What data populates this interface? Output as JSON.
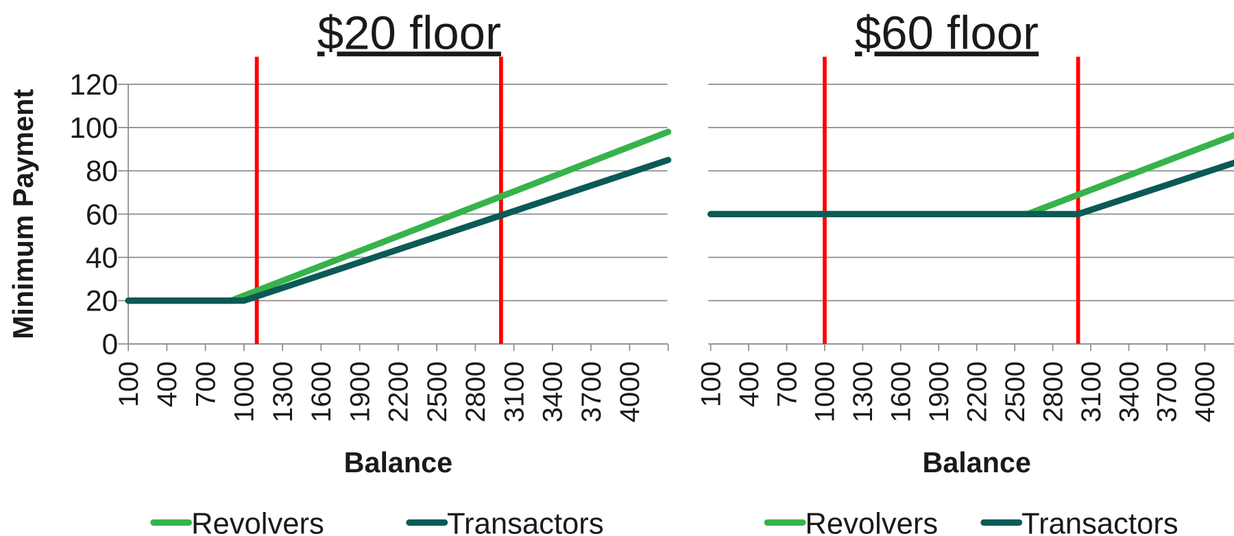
{
  "chart_data": [
    {
      "type": "line",
      "title": "$20 floor",
      "xlabel": "Balance",
      "ylabel": "Minimum Payment",
      "xlim": [
        100,
        4300
      ],
      "xticks": [
        100,
        400,
        700,
        1000,
        1300,
        1600,
        1900,
        2200,
        2500,
        2800,
        3100,
        3400,
        3700,
        4000
      ],
      "ylim": [
        0,
        120
      ],
      "yticks": [
        0,
        20,
        40,
        60,
        80,
        100,
        120
      ],
      "ytick_labels": true,
      "grid": true,
      "series": [
        {
          "name": "Revolvers",
          "color": "#36b34a",
          "x": [
            100,
            900,
            4300
          ],
          "values": [
            20,
            20,
            98
          ]
        },
        {
          "name": "Transactors",
          "color": "#0b5a55",
          "x": [
            100,
            1000,
            4300
          ],
          "values": [
            20,
            20,
            85
          ]
        }
      ],
      "vlines": [
        {
          "x": 1100,
          "color": "#ff0000"
        },
        {
          "x": 3000,
          "color": "#ff0000"
        }
      ]
    },
    {
      "type": "line",
      "title": "$60 floor",
      "xlabel": "Balance",
      "xlim": [
        100,
        4300
      ],
      "xticks": [
        100,
        400,
        700,
        1000,
        1300,
        1600,
        1900,
        2200,
        2500,
        2800,
        3100,
        3400,
        3700,
        4000
      ],
      "ylim": [
        0,
        120
      ],
      "yticks": [
        0,
        20,
        40,
        60,
        80,
        100,
        120
      ],
      "ytick_labels": false,
      "grid": true,
      "series": [
        {
          "name": "Revolvers",
          "color": "#36b34a",
          "x": [
            100,
            2600,
            4300
          ],
          "values": [
            60,
            60,
            98
          ]
        },
        {
          "name": "Transactors",
          "color": "#0b5a55",
          "x": [
            100,
            3000,
            4300
          ],
          "values": [
            60,
            60,
            85
          ]
        }
      ],
      "vlines": [
        {
          "x": 1000,
          "color": "#ff0000"
        },
        {
          "x": 3000,
          "color": "#ff0000"
        }
      ]
    }
  ]
}
